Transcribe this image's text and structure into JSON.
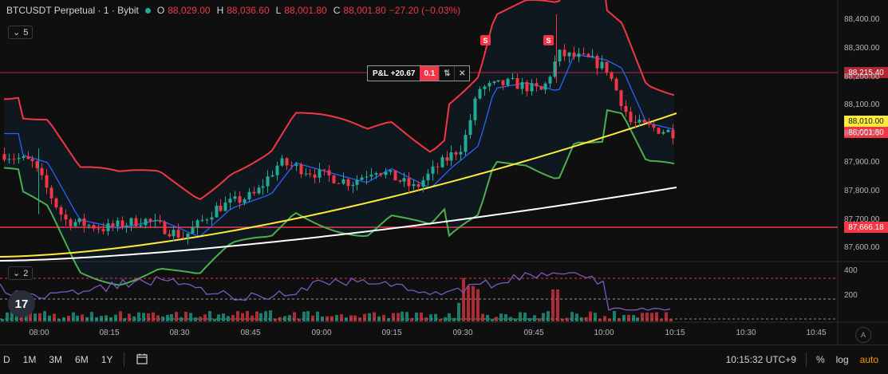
{
  "legend": {
    "symbol": "BTCUSDT Perpetual · 1 · Bybit",
    "o_label": "O",
    "o_value": "88,029.00",
    "h_label": "H",
    "h_value": "88,036.60",
    "l_label": "L",
    "l_value": "88,001.80",
    "c_label": "C",
    "c_value": "88,001.80",
    "change": "−27.20 (−0.03%)"
  },
  "main_pane_badge": "5",
  "indicator_pane_badge": "2",
  "position": {
    "pnl": "P&L +20.67",
    "qty": "0.1"
  },
  "price_tags": {
    "position_line": "88,215.40",
    "ema": "88,010.00",
    "last_price": "88,001.80",
    "support_line": "87,666.18"
  },
  "price_axis": [
    "88,400.00",
    "88,300.00",
    "88,200.00",
    "88,100.00",
    "88,000.00",
    "87,900.00",
    "87,800.00",
    "87,700.00",
    "87,600.00"
  ],
  "indicator_axis": [
    "400",
    "200"
  ],
  "time_axis": [
    "08:00",
    "08:15",
    "08:30",
    "08:45",
    "09:00",
    "09:15",
    "09:30",
    "09:45",
    "10:00",
    "10:15",
    "10:30",
    "10:45"
  ],
  "signal_marker": "S",
  "bottom_bar": {
    "ranges": [
      "D",
      "1M",
      "3M",
      "6M",
      "1Y"
    ],
    "clock": "10:15:32 UTC+9",
    "percent": "%",
    "log": "log",
    "auto": "auto"
  },
  "colors": {
    "up": "#22ab94",
    "down": "#f23645",
    "bb_upper": "#f23645",
    "bb_basis": "#2962ff",
    "bb_lower": "#4caf50",
    "ema_yellow": "#ffeb3b",
    "ema_white": "#ffffff",
    "position_line": "#b22833"
  },
  "icons": [
    "tradingview-logo-icon",
    "calendar-goto-icon",
    "reverse-arrows-icon",
    "close-icon"
  ]
}
